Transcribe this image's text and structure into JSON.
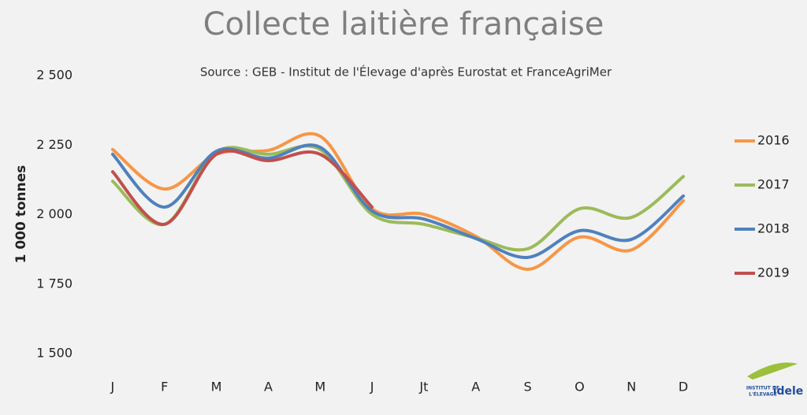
{
  "chart_data": {
    "type": "line",
    "title": "Collecte laitière française",
    "subtitle": "Source : GEB - Institut de l'Élevage d'après Eurostat et FranceAgriMer",
    "y_label": "1 000 tonnes",
    "categories": [
      "J",
      "F",
      "M",
      "A",
      "M",
      "J",
      "Jt",
      "A",
      "S",
      "O",
      "N",
      "D"
    ],
    "series": [
      {
        "name": "2016",
        "color": "#f79646",
        "values": [
          2234,
          2092,
          2217,
          2231,
          2282,
          2021,
          2001,
          1922,
          1803,
          1919,
          1873,
          2050
        ]
      },
      {
        "name": "2017",
        "color": "#9bbb59",
        "values": [
          2120,
          1965,
          2225,
          2217,
          2234,
          2001,
          1965,
          1916,
          1877,
          2021,
          1990,
          2137
        ]
      },
      {
        "name": "2018",
        "color": "#4f81bd",
        "values": [
          2217,
          2027,
          2228,
          2203,
          2242,
          2013,
          1984,
          1914,
          1846,
          1942,
          1911,
          2067
        ]
      },
      {
        "name": "2019",
        "color": "#c0504d",
        "values": [
          2154,
          1965,
          2217,
          2194,
          2217,
          2027,
          null,
          null,
          null,
          null,
          null,
          null
        ]
      }
    ],
    "ylim": [
      1500,
      2500
    ],
    "yticks": [
      {
        "value": 1500,
        "label": "1 500"
      },
      {
        "value": 1750,
        "label": "1 750"
      },
      {
        "value": 2000,
        "label": "2 000"
      },
      {
        "value": 2250,
        "label": "2 250"
      },
      {
        "value": 2500,
        "label": "2 500"
      }
    ],
    "grid": false,
    "legend": "right",
    "logo": [
      "INSTITUT DE",
      "L'ÉLEVAGE",
      "idele"
    ]
  }
}
